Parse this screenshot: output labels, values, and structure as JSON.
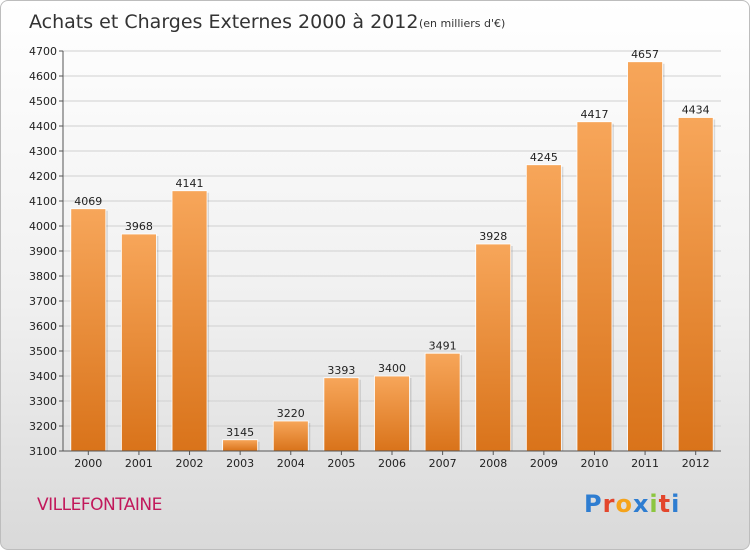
{
  "title": "Achats et Charges Externes 2000 à 2012",
  "subtitle": "(en milliers d'€)",
  "location": "VILLEFONTAINE",
  "brand": {
    "letters": [
      "P",
      "r",
      "o",
      "x",
      "i",
      "t",
      "i"
    ],
    "colors": [
      "#2e7dd1",
      "#e3462c",
      "#f5a31a",
      "#2e7dd1",
      "#8cc63f",
      "#e3462c",
      "#2e7dd1"
    ]
  },
  "colors": {
    "bar_top": "#f7a65a",
    "bar_bottom": "#d9731a",
    "grid": "#d0d0d0",
    "axis": "#555555"
  },
  "chart_data": {
    "type": "bar",
    "categories": [
      "2000",
      "2001",
      "2002",
      "2003",
      "2004",
      "2005",
      "2006",
      "2007",
      "2008",
      "2009",
      "2010",
      "2011",
      "2012"
    ],
    "values": [
      4069,
      3968,
      4141,
      3145,
      3220,
      3393,
      3400,
      3491,
      3928,
      4245,
      4417,
      4657,
      4434
    ],
    "ylim": [
      3100,
      4700
    ],
    "yticks": [
      3100,
      3200,
      3300,
      3400,
      3500,
      3600,
      3700,
      3800,
      3900,
      4000,
      4100,
      4200,
      4300,
      4400,
      4500,
      4600,
      4700
    ],
    "grid": true,
    "data_labels": true
  }
}
